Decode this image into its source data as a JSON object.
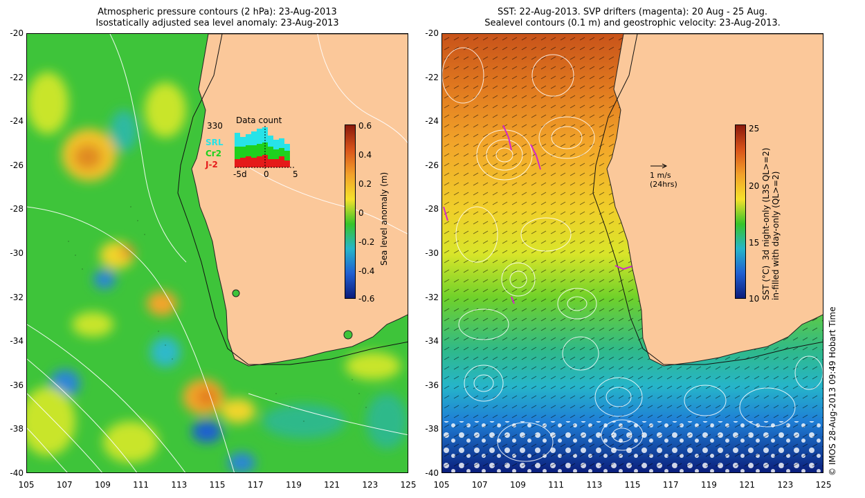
{
  "left_panel": {
    "title_line1": "Atmospheric pressure contours (2 hPa): 23-Aug-2013",
    "title_line2": "Isostatically adjusted sea level anomaly: 23-Aug-2013",
    "colorbar": {
      "label": "Sea level anomaly (m)",
      "ticks": [
        "0.6",
        "0.4",
        "0.2",
        "0",
        "-0.2",
        "-0.4",
        "-0.6"
      ],
      "colors": [
        "#8b1a0c",
        "#d9541a",
        "#f2a12a",
        "#f5e12b",
        "#37c42a",
        "#26b5c9",
        "#1f5fd1",
        "#0a1c7a"
      ]
    },
    "inset": {
      "title": "Data count",
      "max_count": "330",
      "series_labels": [
        "SRL",
        "Cr2",
        "J-2"
      ],
      "series_colors": [
        "#27e3e8",
        "#1ed11e",
        "#e51a1a"
      ],
      "axis_ticks": [
        "-5d",
        "0",
        "5"
      ]
    }
  },
  "right_panel": {
    "title_line1": "SST: 22-Aug-2013. SVP drifters (magenta): 20 Aug - 25 Aug.",
    "title_line2": "Sealevel contours (0.1 m) and geostrophic velocity: 23-Aug-2013.",
    "scale_arrow_line1": "1 m/s",
    "scale_arrow_line2": "(24hrs)",
    "colorbar": {
      "label_line1": "SST (°C)  3d night-only (L3S QL>=2)",
      "label_line2": "in-filled with day-only (QL>=2)",
      "ticks": [
        "25",
        "20",
        "15",
        "10"
      ],
      "colors": [
        "#8b1a0c",
        "#d9541a",
        "#f2a12a",
        "#f5e12b",
        "#37c42a",
        "#26b5c9",
        "#1f5fd1",
        "#0a1c7a"
      ]
    }
  },
  "axes": {
    "y_ticks": [
      "-20",
      "-22",
      "-24",
      "-26",
      "-28",
      "-30",
      "-32",
      "-34",
      "-36",
      "-38",
      "-40"
    ],
    "x_ticks": [
      "105",
      "107",
      "109",
      "111",
      "113",
      "115",
      "117",
      "119",
      "121",
      "123",
      "125"
    ]
  },
  "colors": {
    "land": "#fbc89a",
    "ssh_base": "#3ec43a",
    "credit_text": "#000000"
  },
  "credit": "© IMOS 28-Aug-2013 09:49 Hobart Time"
}
